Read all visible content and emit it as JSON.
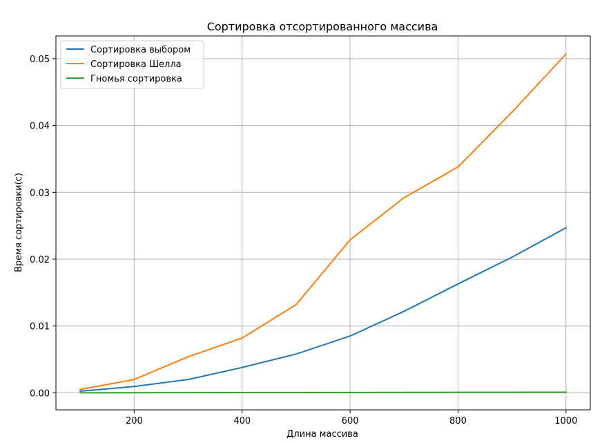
{
  "chart_data": {
    "type": "line",
    "title": "Сортировка отсортированного массива",
    "xlabel": "Длина массива",
    "ylabel": "Время сортировки(с)",
    "x": [
      100,
      200,
      300,
      400,
      500,
      600,
      700,
      800,
      900,
      1000
    ],
    "xlim": [
      55,
      1045
    ],
    "ylim": [
      -0.00254,
      0.0534
    ],
    "xticks": [
      200,
      400,
      600,
      800,
      1000
    ],
    "yticks": [
      0.0,
      0.01,
      0.02,
      0.03,
      0.04,
      0.05
    ],
    "ytick_labels": [
      "0.00",
      "0.01",
      "0.02",
      "0.03",
      "0.04",
      "0.05"
    ],
    "grid": true,
    "legend_position": "top-left",
    "series": [
      {
        "name": "Сортировка выбором",
        "color": "#1f77b4",
        "values": [
          0.00025,
          0.00095,
          0.002,
          0.0038,
          0.0058,
          0.0085,
          0.0122,
          0.0163,
          0.0203,
          0.0247
        ]
      },
      {
        "name": "Сортировка Шелла",
        "color": "#ff7f0e",
        "values": [
          0.0005,
          0.002,
          0.0054,
          0.0082,
          0.0132,
          0.0229,
          0.0292,
          0.0338,
          0.042,
          0.0507
        ]
      },
      {
        "name": "Гномья сортировка",
        "color": "#2ca02c",
        "values": [
          1e-05,
          2e-05,
          3e-05,
          4e-05,
          5e-05,
          6e-05,
          7e-05,
          8e-05,
          9e-05,
          0.0001
        ]
      }
    ]
  }
}
